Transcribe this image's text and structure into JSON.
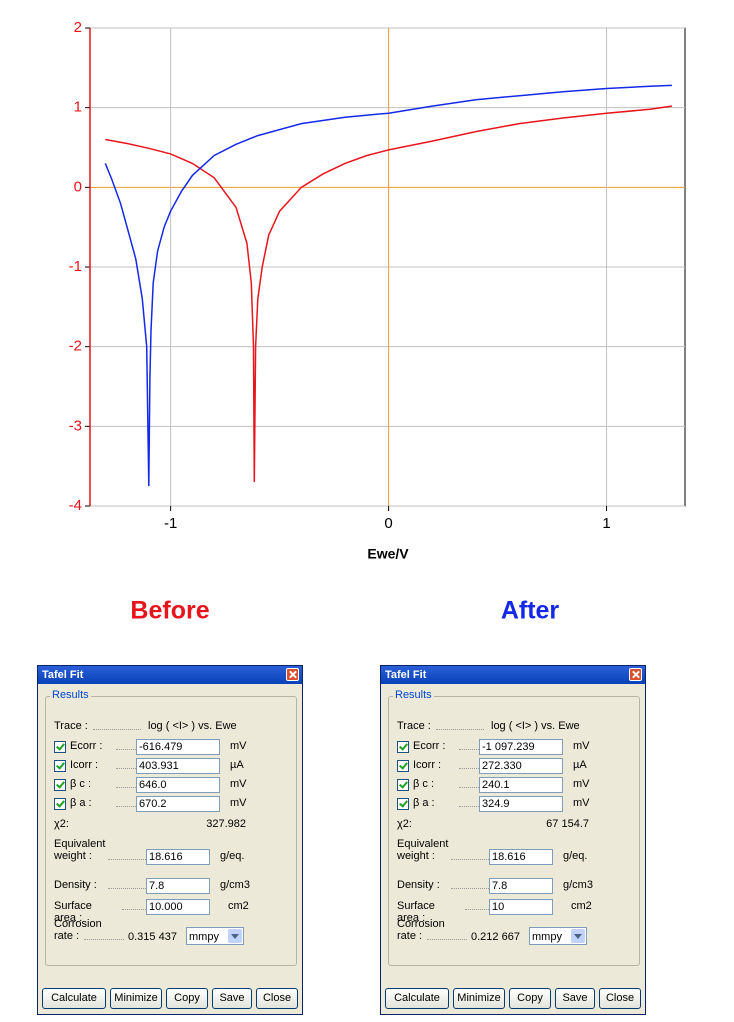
{
  "chart_data": {
    "type": "line",
    "x_label": "Ewe/V",
    "xlim": [
      -1.37,
      1.36
    ],
    "ylim": [
      -4,
      2
    ],
    "xticks": [
      -1,
      0,
      1
    ],
    "yticks": [
      -4,
      -3,
      -2,
      -1,
      0,
      1,
      2
    ],
    "grid": true,
    "grid_color": "#c0c0c0",
    "zero_line_color": "#f39a3a",
    "ytick_color": "#e8141c",
    "series": [
      {
        "name": "Before",
        "color": "#e8141c",
        "x": [
          -1.3,
          -1.2,
          -1.1,
          -1.0,
          -0.9,
          -0.8,
          -0.7,
          -0.65,
          -0.63,
          -0.62,
          -0.616,
          -0.61,
          -0.6,
          -0.58,
          -0.55,
          -0.5,
          -0.4,
          -0.3,
          -0.2,
          -0.1,
          0,
          0.2,
          0.4,
          0.6,
          0.8,
          1.0,
          1.2,
          1.3
        ],
        "values": [
          0.6,
          0.55,
          0.49,
          0.42,
          0.3,
          0.12,
          -0.25,
          -0.7,
          -1.2,
          -2.0,
          -3.7,
          -2.0,
          -1.4,
          -1.0,
          -0.6,
          -0.3,
          0.0,
          0.17,
          0.3,
          0.4,
          0.47,
          0.58,
          0.7,
          0.8,
          0.87,
          0.93,
          0.98,
          1.02
        ]
      },
      {
        "name": "After",
        "color": "#1428e8",
        "x": [
          -1.3,
          -1.27,
          -1.23,
          -1.2,
          -1.16,
          -1.13,
          -1.11,
          -1.1,
          -1.095,
          -1.09,
          -1.08,
          -1.06,
          -1.03,
          -1.0,
          -0.95,
          -0.9,
          -0.8,
          -0.7,
          -0.6,
          -0.4,
          -0.2,
          0,
          0.2,
          0.4,
          0.6,
          0.8,
          1.0,
          1.2,
          1.3
        ],
        "values": [
          0.3,
          0.1,
          -0.2,
          -0.5,
          -0.9,
          -1.4,
          -2.0,
          -3.75,
          -2.4,
          -1.8,
          -1.2,
          -0.8,
          -0.5,
          -0.3,
          -0.05,
          0.15,
          0.4,
          0.54,
          0.65,
          0.8,
          0.88,
          0.93,
          1.02,
          1.1,
          1.15,
          1.2,
          1.24,
          1.27,
          1.28
        ]
      }
    ]
  },
  "dialogs": [
    {
      "title": "Tafel Fit",
      "section": "Results",
      "trace": {
        "label": "Trace :",
        "value": "log ( <I> ) vs. Ewe"
      },
      "fields": [
        {
          "label": "Ecorr :",
          "value": "-616.479",
          "unit": "mV"
        },
        {
          "label": "Icorr :",
          "value": "403.931",
          "unit": "µA"
        },
        {
          "label": "β c :",
          "value": "646.0",
          "unit": "mV"
        },
        {
          "label": "β a :",
          "value": "670.2",
          "unit": "mV"
        }
      ],
      "chi": {
        "label": "χ2:",
        "value": "327.982"
      },
      "inputs": [
        {
          "label": "Equivalent weight :",
          "value": "18.616",
          "unit": "g/eq."
        },
        {
          "label": "Density :",
          "value": "7.8",
          "unit": "g/cm3"
        },
        {
          "label": "Surface area :",
          "value": "10.000",
          "unit": "cm2"
        }
      ],
      "rate": {
        "label": "Corrosion rate :",
        "value": "0.315 437",
        "unit": "mmpy"
      },
      "buttons": [
        "Calculate",
        "Minimize",
        "Copy",
        "Save",
        "Close"
      ]
    },
    {
      "title": "Tafel Fit",
      "section": "Results",
      "trace": {
        "label": "Trace :",
        "value": "log ( <I> ) vs. Ewe"
      },
      "fields": [
        {
          "label": "Ecorr :",
          "value": "-1 097.239",
          "unit": "mV"
        },
        {
          "label": "Icorr :",
          "value": "272.330",
          "unit": "µA"
        },
        {
          "label": "β c :",
          "value": "240.1",
          "unit": "mV"
        },
        {
          "label": "β a :",
          "value": "324.9",
          "unit": "mV"
        }
      ],
      "chi": {
        "label": "χ2:",
        "value": "67 154.7"
      },
      "inputs": [
        {
          "label": "Equivalent weight :",
          "value": "18.616",
          "unit": "g/eq."
        },
        {
          "label": "Density :",
          "value": "7.8",
          "unit": "g/cm3"
        },
        {
          "label": "Surface area :",
          "value": "10",
          "unit": "cm2"
        }
      ],
      "rate": {
        "label": "Corrosion rate :",
        "value": "0.212 667",
        "unit": "mmpy"
      },
      "buttons": [
        "Calculate",
        "Minimize",
        "Copy",
        "Save",
        "Close"
      ]
    }
  ]
}
